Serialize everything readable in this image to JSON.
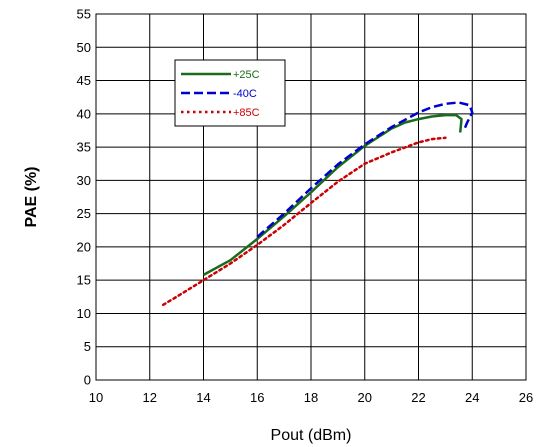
{
  "chart_data": {
    "type": "line",
    "xlabel": "Pout (dBm)",
    "ylabel": "PAE (%)",
    "xlim": [
      10,
      26
    ],
    "ylim": [
      0,
      55
    ],
    "x_ticks": [
      10,
      12,
      14,
      16,
      18,
      20,
      22,
      24,
      26
    ],
    "y_ticks": [
      0,
      5,
      10,
      15,
      20,
      25,
      30,
      35,
      40,
      45,
      50,
      55
    ],
    "grid": true,
    "legend_position": "top-left",
    "series": [
      {
        "name": "+25C",
        "color": "#1a6b1a",
        "style": "solid",
        "points": [
          [
            14.0,
            15.8
          ],
          [
            15.0,
            18.0
          ],
          [
            16.0,
            21.2
          ],
          [
            17.0,
            24.6
          ],
          [
            18.0,
            28.2
          ],
          [
            19.0,
            32.0
          ],
          [
            20.0,
            35.2
          ],
          [
            21.0,
            37.8
          ],
          [
            21.5,
            38.7
          ],
          [
            22.0,
            39.2
          ],
          [
            22.5,
            39.6
          ],
          [
            23.0,
            39.8
          ],
          [
            23.4,
            39.8
          ],
          [
            23.6,
            39.2
          ],
          [
            23.55,
            37.2
          ]
        ]
      },
      {
        "name": "-40C",
        "color": "#0000cc",
        "style": "dashed",
        "points": [
          [
            16.0,
            21.5
          ],
          [
            17.0,
            25.0
          ],
          [
            18.0,
            28.8
          ],
          [
            19.0,
            32.4
          ],
          [
            20.0,
            35.4
          ],
          [
            21.0,
            38.0
          ],
          [
            22.0,
            40.2
          ],
          [
            22.5,
            41.0
          ],
          [
            23.0,
            41.5
          ],
          [
            23.5,
            41.7
          ],
          [
            23.9,
            41.3
          ],
          [
            24.0,
            40.2
          ],
          [
            23.8,
            38.6
          ],
          [
            23.7,
            37.6
          ]
        ]
      },
      {
        "name": "+85C",
        "color": "#cc0000",
        "style": "dotted",
        "points": [
          [
            12.5,
            11.3
          ],
          [
            13.0,
            12.5
          ],
          [
            14.0,
            15.0
          ],
          [
            15.0,
            17.5
          ],
          [
            16.0,
            20.3
          ],
          [
            17.0,
            23.3
          ],
          [
            18.0,
            26.6
          ],
          [
            19.0,
            29.8
          ],
          [
            20.0,
            32.5
          ],
          [
            21.0,
            34.2
          ],
          [
            22.0,
            35.7
          ],
          [
            22.5,
            36.2
          ],
          [
            23.0,
            36.4
          ]
        ]
      }
    ]
  }
}
